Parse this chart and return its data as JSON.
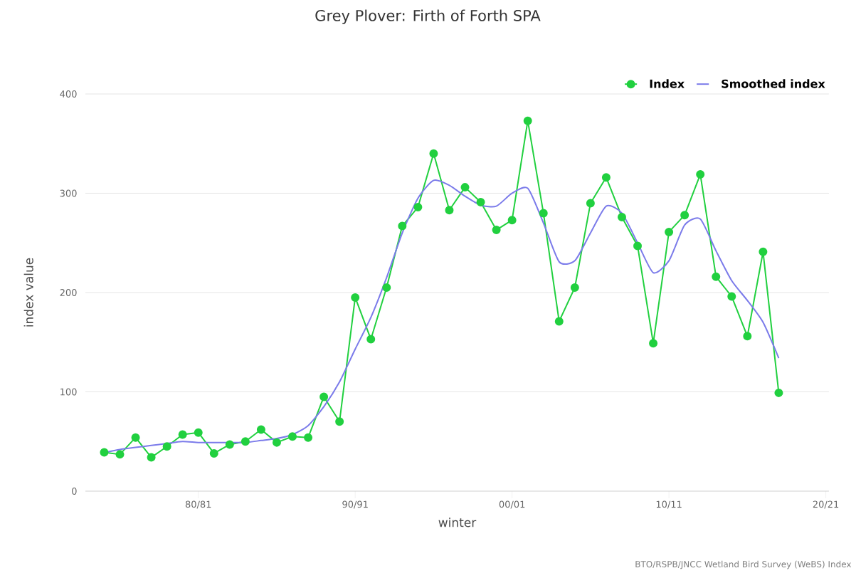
{
  "chart_data": {
    "type": "line",
    "title": "Grey Plover: Firth of Forth SPA",
    "xlabel": "winter",
    "ylabel": "index value",
    "categories": [
      null,
      null,
      null,
      null,
      null,
      null,
      "80/81",
      null,
      null,
      null,
      null,
      null,
      null,
      null,
      null,
      null,
      "90/91",
      null,
      null,
      null,
      null,
      null,
      null,
      null,
      null,
      null,
      "00/01",
      null,
      null,
      null,
      null,
      null,
      null,
      null,
      null,
      null,
      "10/11",
      null,
      null,
      null,
      null,
      null,
      null,
      null,
      null,
      null,
      "20/21"
    ],
    "series": [
      {
        "name": "Index",
        "color": "#21d03f",
        "marker": "circle",
        "values": [
          39,
          37,
          54,
          34,
          45,
          57,
          59,
          38,
          47,
          50,
          62,
          49,
          55,
          54,
          95,
          70,
          195,
          153,
          205,
          267,
          286,
          340,
          283,
          306,
          291,
          263,
          273,
          373,
          280,
          171,
          205,
          290,
          316,
          276,
          247,
          149,
          261,
          278,
          319,
          216,
          196,
          156,
          241,
          99,
          null,
          null,
          null
        ]
      },
      {
        "name": "Smoothed index",
        "color": "#7b7bea",
        "marker": "none",
        "values": [
          39,
          42,
          44,
          46,
          48,
          50,
          49,
          49,
          49,
          49,
          51,
          53,
          57,
          66,
          85,
          110,
          143,
          175,
          215,
          260,
          295,
          313,
          308,
          297,
          288,
          287,
          300,
          305,
          270,
          231,
          232,
          260,
          287,
          280,
          250,
          220,
          232,
          268,
          274,
          242,
          212,
          192,
          170,
          134,
          null,
          null,
          null
        ]
      }
    ],
    "ylim": [
      0,
      400
    ],
    "yticks": [
      0,
      100,
      200,
      300,
      400
    ],
    "grid": "y",
    "legend": "top right",
    "annotations": [
      "BTO/RSPB/JNCC Wetland Bird Survey (WeBS) Index"
    ]
  }
}
